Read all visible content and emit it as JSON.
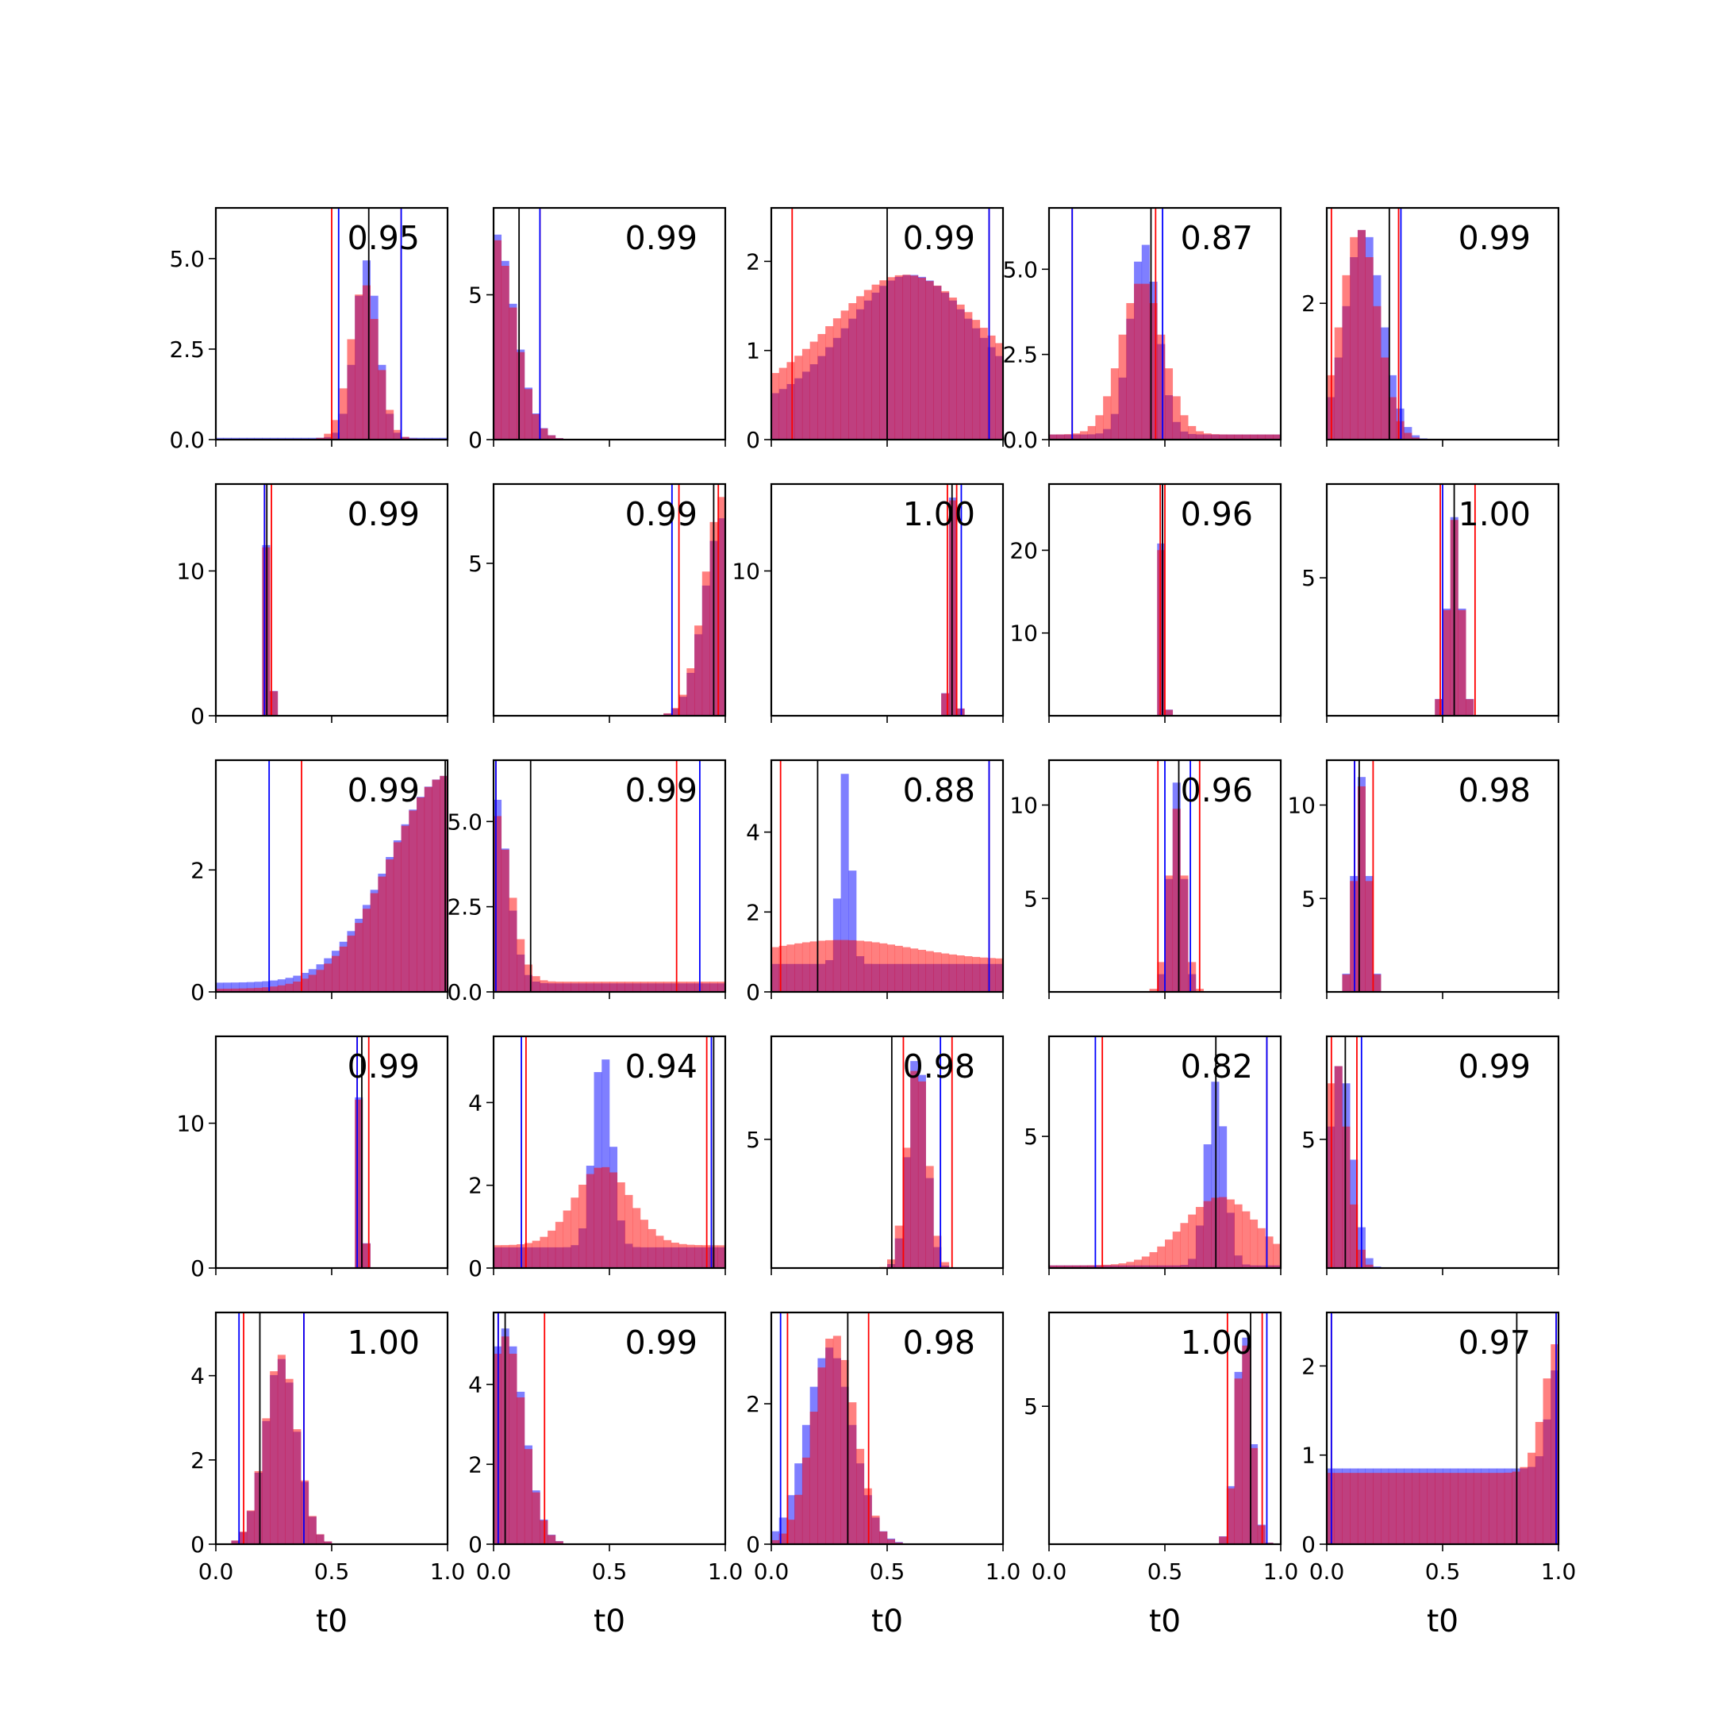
{
  "chart_data": {
    "type": "histogram-grid",
    "rows": 5,
    "cols": 5,
    "xlabel": "t0",
    "xlim": [
      0,
      1
    ],
    "xticks": [
      "0.0",
      "0.5",
      "1.0"
    ],
    "colors": {
      "blue": "#0000ff",
      "red": "#ff0000",
      "black": "#000000"
    },
    "legend": "none",
    "grid": false,
    "panels": [
      {
        "score": "0.95",
        "ylim": [
          0,
          6.4
        ],
        "yticks": [
          "0.0",
          "2.5",
          "5.0"
        ],
        "ytick_values": [
          0,
          2.5,
          5
        ],
        "blue": {
          "peak": 0.65,
          "width": 0.05,
          "height": 4.9,
          "base": 0.05
        },
        "red": {
          "peak": 0.64,
          "width": 0.06,
          "height": 4.3,
          "base": 0.02
        },
        "lines": {
          "black": [
            0.66
          ],
          "blue": [
            0.53,
            0.8
          ],
          "red": [
            0.5,
            0.8
          ]
        }
      },
      {
        "score": "0.99",
        "ylim": [
          0,
          8
        ],
        "yticks": [
          "0",
          "5"
        ],
        "ytick_values": [
          0,
          5
        ],
        "blue": {
          "peak": 0.0,
          "width": 0.09,
          "height": 7.2,
          "base": 0
        },
        "red": {
          "peak": 0.0,
          "width": 0.09,
          "height": 7.0,
          "base": 0
        },
        "lines": {
          "black": [
            0.11
          ],
          "blue": [
            0.2
          ],
          "red": [
            0.2
          ]
        }
      },
      {
        "score": "0.99",
        "ylim": [
          0,
          2.6
        ],
        "yticks": [
          "0",
          "1",
          "2"
        ],
        "ytick_values": [
          0,
          1,
          2
        ],
        "blue": {
          "peak": 0.6,
          "width": 0.28,
          "height": 1.5,
          "base": 0.35
        },
        "red": {
          "peak": 0.58,
          "width": 0.32,
          "height": 1.4,
          "base": 0.45
        },
        "lines": {
          "black": [
            0.5
          ],
          "blue": [
            0.94
          ],
          "red": [
            0.09,
            0.94
          ]
        }
      },
      {
        "score": "0.87",
        "ylim": [
          0,
          6.8
        ],
        "yticks": [
          "0.0",
          "2.5",
          "5.0"
        ],
        "ytick_values": [
          0,
          2.5,
          5
        ],
        "blue": {
          "peak": 0.41,
          "width": 0.06,
          "height": 5.6,
          "base": 0.15
        },
        "red": {
          "peak": 0.4,
          "width": 0.09,
          "height": 4.5,
          "base": 0.15
        },
        "lines": {
          "black": [
            0.44
          ],
          "blue": [
            0.1,
            0.49
          ],
          "red": [
            0.1,
            0.46
          ]
        }
      },
      {
        "score": "0.99",
        "ylim": [
          0,
          3.4
        ],
        "yticks": [
          "2"
        ],
        "ytick_values": [
          2
        ],
        "blue": {
          "peak": 0.16,
          "width": 0.08,
          "height": 3.1,
          "base": 0
        },
        "red": {
          "peak": 0.14,
          "width": 0.08,
          "height": 3.1,
          "base": 0
        },
        "lines": {
          "black": [
            0.27
          ],
          "blue": [
            0.32
          ],
          "red": [
            0.02,
            0.31
          ]
        }
      },
      {
        "score": "0.99",
        "ylim": [
          0,
          16
        ],
        "yticks": [
          "0",
          "10"
        ],
        "ytick_values": [
          0,
          10
        ],
        "blue": {
          "peak": 0.225,
          "width": 0.012,
          "height": 15,
          "base": 0
        },
        "red": {
          "peak": 0.225,
          "width": 0.012,
          "height": 14.8,
          "base": 0
        },
        "lines": {
          "black": [
            0.22
          ],
          "blue": [
            0.21
          ],
          "red": [
            0.21,
            0.24
          ]
        }
      },
      {
        "score": "0.99",
        "ylim": [
          0,
          7.6
        ],
        "yticks": [
          "5"
        ],
        "ytick_values": [
          5
        ],
        "blue": {
          "peak": 0.99,
          "width": 0.08,
          "height": 6.5,
          "base": 0
        },
        "red": {
          "peak": 0.99,
          "width": 0.08,
          "height": 7.2,
          "base": 0
        },
        "lines": {
          "black": [
            0.95
          ],
          "blue": [
            0.77
          ],
          "red": [
            0.8,
            0.97
          ]
        }
      },
      {
        "score": "1.00",
        "ylim": [
          0,
          16
        ],
        "yticks": [
          "10"
        ],
        "ytick_values": [
          10
        ],
        "blue": {
          "peak": 0.78,
          "width": 0.014,
          "height": 15.5,
          "base": 0
        },
        "red": {
          "peak": 0.78,
          "width": 0.014,
          "height": 15.3,
          "base": 0
        },
        "lines": {
          "black": [
            0.78
          ],
          "blue": [
            0.82
          ],
          "red": [
            0.76,
            0.8
          ]
        }
      },
      {
        "score": "0.96",
        "ylim": [
          0,
          28
        ],
        "yticks": [
          "10",
          "20"
        ],
        "ytick_values": [
          10,
          20
        ],
        "blue": {
          "peak": 0.49,
          "width": 0.01,
          "height": 26,
          "base": 0
        },
        "red": {
          "peak": 0.49,
          "width": 0.01,
          "height": 25,
          "base": 0
        },
        "lines": {
          "black": [
            0.49
          ],
          "blue": [
            0.49
          ],
          "red": [
            0.48,
            0.5
          ]
        }
      },
      {
        "score": "1.00",
        "ylim": [
          0,
          8.4
        ],
        "yticks": [
          "5"
        ],
        "ytick_values": [
          5
        ],
        "blue": {
          "peak": 0.55,
          "width": 0.03,
          "height": 7.2,
          "base": 0
        },
        "red": {
          "peak": 0.55,
          "width": 0.03,
          "height": 7.1,
          "base": 0
        },
        "lines": {
          "black": [
            0.55
          ],
          "blue": [
            0.5
          ],
          "red": [
            0.49,
            0.64
          ]
        }
      },
      {
        "score": "0.99",
        "ylim": [
          0,
          3.8
        ],
        "yticks": [
          "0",
          "2"
        ],
        "ytick_values": [
          0,
          2
        ],
        "blue": {
          "peak": 1.0,
          "width": 0.25,
          "height": 3.4,
          "base": 0.15
        },
        "red": {
          "peak": 1.0,
          "width": 0.25,
          "height": 3.5,
          "base": 0.05
        },
        "lines": {
          "black": [
            0.99
          ],
          "blue": [
            0.23,
            1.0
          ],
          "red": [
            0.37,
            1.0
          ]
        }
      },
      {
        "score": "0.99",
        "ylim": [
          0,
          6.8
        ],
        "yticks": [
          "0.0",
          "2.5",
          "5.0"
        ],
        "ytick_values": [
          0,
          2.5,
          5
        ],
        "blue": {
          "peak": 0.0,
          "width": 0.06,
          "height": 5.6,
          "base": 0.25
        },
        "red": {
          "peak": 0.0,
          "width": 0.07,
          "height": 5.0,
          "base": 0.3
        },
        "lines": {
          "black": [
            0.16
          ],
          "blue": [
            0.01,
            0.89
          ],
          "red": [
            0.01,
            0.79
          ]
        }
      },
      {
        "score": "0.88",
        "ylim": [
          0,
          5.8
        ],
        "yticks": [
          "0",
          "2",
          "4"
        ],
        "ytick_values": [
          0,
          2,
          4
        ],
        "blue": {
          "peak": 0.32,
          "width": 0.025,
          "height": 4.8,
          "base": 0.7
        },
        "red": {
          "peak": 0.3,
          "width": 0.3,
          "height": 0.5,
          "base": 0.8
        },
        "lines": {
          "black": [
            0.2
          ],
          "blue": [
            0.94
          ],
          "red": [
            0.04,
            0.94
          ]
        }
      },
      {
        "score": "0.96",
        "ylim": [
          0,
          12.4
        ],
        "yticks": [
          "5",
          "10"
        ],
        "ytick_values": [
          5,
          10
        ],
        "blue": {
          "peak": 0.55,
          "width": 0.03,
          "height": 11.2,
          "base": 0
        },
        "red": {
          "peak": 0.55,
          "width": 0.035,
          "height": 9.8,
          "base": 0
        },
        "lines": {
          "black": [
            0.56
          ],
          "blue": [
            0.5,
            0.61
          ],
          "red": [
            0.47,
            0.65
          ]
        }
      },
      {
        "score": "0.98",
        "ylim": [
          0,
          12.4
        ],
        "yticks": [
          "5",
          "10"
        ],
        "ytick_values": [
          5,
          10
        ],
        "blue": {
          "peak": 0.15,
          "width": 0.03,
          "height": 11.5,
          "base": 0
        },
        "red": {
          "peak": 0.15,
          "width": 0.03,
          "height": 11.0,
          "base": 0
        },
        "lines": {
          "black": [
            0.14
          ],
          "blue": [
            0.12
          ],
          "red": [
            0.12,
            0.2
          ]
        }
      },
      {
        "score": "0.99",
        "ylim": [
          0,
          16
        ],
        "yticks": [
          "0",
          "10"
        ],
        "ytick_values": [
          0,
          10
        ],
        "blue": {
          "peak": 0.625,
          "width": 0.012,
          "height": 15,
          "base": 0
        },
        "red": {
          "peak": 0.625,
          "width": 0.012,
          "height": 14.8,
          "base": 0
        },
        "lines": {
          "black": [
            0.63
          ],
          "blue": [
            0.61
          ],
          "red": [
            0.61,
            0.66
          ]
        }
      },
      {
        "score": "0.94",
        "ylim": [
          0,
          5.6
        ],
        "yticks": [
          "0",
          "2",
          "4"
        ],
        "ytick_values": [
          0,
          2,
          4
        ],
        "blue": {
          "peak": 0.47,
          "width": 0.04,
          "height": 4.8,
          "base": 0.5
        },
        "red": {
          "peak": 0.47,
          "width": 0.12,
          "height": 1.9,
          "base": 0.55
        },
        "lines": {
          "black": [
            0.95
          ],
          "blue": [
            0.12,
            0.94
          ],
          "red": [
            0.14,
            0.92
          ]
        }
      },
      {
        "score": "0.98",
        "ylim": [
          0,
          9
        ],
        "yticks": [
          "5"
        ],
        "ytick_values": [
          5
        ],
        "blue": {
          "peak": 0.63,
          "width": 0.04,
          "height": 8.5,
          "base": 0
        },
        "red": {
          "peak": 0.63,
          "width": 0.045,
          "height": 8.0,
          "base": 0
        },
        "lines": {
          "black": [
            0.52
          ],
          "blue": [
            0.73
          ],
          "red": [
            0.57,
            0.78
          ]
        }
      },
      {
        "score": "0.82",
        "ylim": [
          0,
          8.8
        ],
        "yticks": [
          "5"
        ],
        "ytick_values": [
          5
        ],
        "blue": {
          "peak": 0.72,
          "width": 0.04,
          "height": 7.0,
          "base": 0.1
        },
        "red": {
          "peak": 0.74,
          "width": 0.16,
          "height": 2.6,
          "base": 0.1
        },
        "lines": {
          "black": [
            0.72
          ],
          "blue": [
            0.2,
            0.94
          ],
          "red": [
            0.23,
            0.94
          ]
        }
      },
      {
        "score": "0.99",
        "ylim": [
          0,
          9
        ],
        "yticks": [
          "5"
        ],
        "ytick_values": [
          5
        ],
        "blue": {
          "peak": 0.06,
          "width": 0.05,
          "height": 8.0,
          "base": 0
        },
        "red": {
          "peak": 0.04,
          "width": 0.05,
          "height": 8.0,
          "base": 0
        },
        "lines": {
          "black": [
            0.08
          ],
          "blue": [
            0.15
          ],
          "red": [
            0.02,
            0.13
          ]
        }
      },
      {
        "score": "1.00",
        "ylim": [
          0,
          5.5
        ],
        "yticks": [
          "0",
          "2",
          "4"
        ],
        "ytick_values": [
          0,
          2,
          4
        ],
        "blue": {
          "peak": 0.28,
          "width": 0.07,
          "height": 4.4,
          "base": 0
        },
        "red": {
          "peak": 0.28,
          "width": 0.07,
          "height": 4.5,
          "base": 0
        },
        "lines": {
          "black": [
            0.19
          ],
          "blue": [
            0.1,
            0.38
          ],
          "red": [
            0.12,
            0.38
          ]
        }
      },
      {
        "score": "0.99",
        "ylim": [
          0,
          5.8
        ],
        "yticks": [
          "0",
          "2",
          "4"
        ],
        "ytick_values": [
          0,
          2,
          4
        ],
        "blue": {
          "peak": 0.05,
          "width": 0.08,
          "height": 5.4,
          "base": 0
        },
        "red": {
          "peak": 0.05,
          "width": 0.08,
          "height": 5.2,
          "base": 0
        },
        "lines": {
          "black": [
            0.05
          ],
          "blue": [
            0.02
          ],
          "red": [
            0.02,
            0.22
          ]
        }
      },
      {
        "score": "0.98",
        "ylim": [
          0,
          3.3
        ],
        "yticks": [
          "0",
          "2"
        ],
        "ytick_values": [
          0,
          2
        ],
        "blue": {
          "peak": 0.25,
          "width": 0.1,
          "height": 2.8,
          "base": 0
        },
        "red": {
          "peak": 0.27,
          "width": 0.09,
          "height": 3.0,
          "base": 0
        },
        "lines": {
          "black": [
            0.33
          ],
          "blue": [
            0.04
          ],
          "red": [
            0.07,
            0.42
          ]
        }
      },
      {
        "score": "1.00",
        "ylim": [
          0,
          8.4
        ],
        "yticks": [
          "5"
        ],
        "ytick_values": [
          5
        ],
        "blue": {
          "peak": 0.84,
          "width": 0.035,
          "height": 7.8,
          "base": 0
        },
        "red": {
          "peak": 0.84,
          "width": 0.035,
          "height": 7.5,
          "base": 0
        },
        "lines": {
          "black": [
            0.87
          ],
          "blue": [
            0.94
          ],
          "red": [
            0.77,
            0.92
          ]
        }
      },
      {
        "score": "0.97",
        "ylim": [
          0,
          2.6
        ],
        "yticks": [
          "0",
          "1",
          "2"
        ],
        "ytick_values": [
          0,
          1,
          2
        ],
        "blue": {
          "peak": 1.0,
          "width": 0.04,
          "height": 1.2,
          "base": 0.85
        },
        "red": {
          "peak": 1.0,
          "width": 0.06,
          "height": 1.5,
          "base": 0.8
        },
        "lines": {
          "black": [
            0.82
          ],
          "blue": [
            0.02,
            0.99
          ],
          "red": [
            0.02,
            0.99
          ]
        }
      }
    ]
  }
}
